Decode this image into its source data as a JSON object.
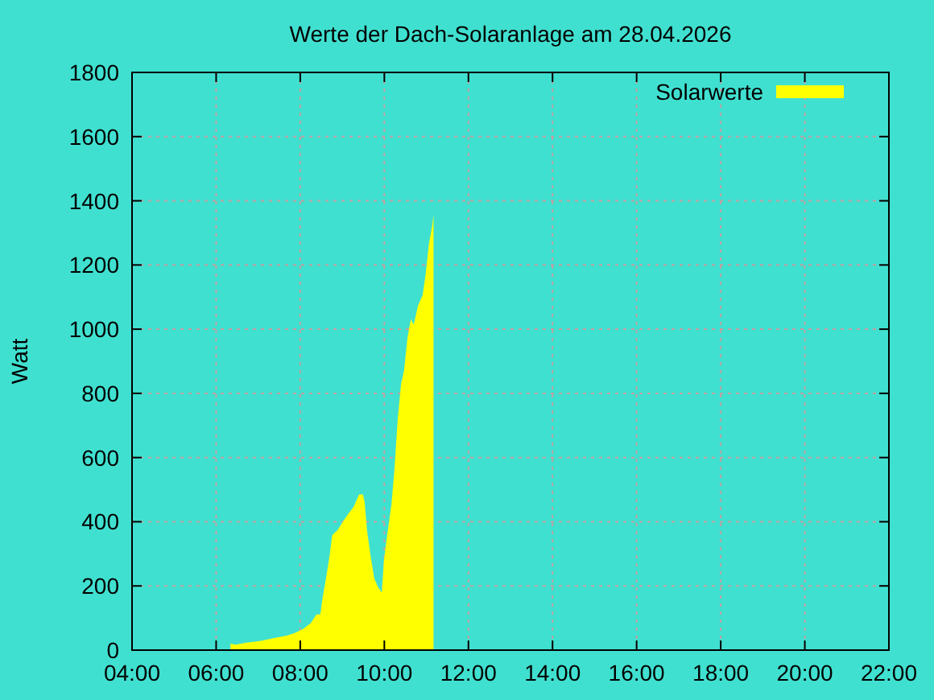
{
  "chart_data": {
    "type": "area",
    "title": "Werte der Dach-Solaranlage am 28.04.2026",
    "ylabel": "Watt",
    "xlim": [
      4,
      22
    ],
    "ylim": [
      0,
      1800
    ],
    "xticks": [
      {
        "value": 4,
        "label": "04:00"
      },
      {
        "value": 6,
        "label": "06:00"
      },
      {
        "value": 8,
        "label": "08:00"
      },
      {
        "value": 10,
        "label": "10:00"
      },
      {
        "value": 12,
        "label": "12:00"
      },
      {
        "value": 14,
        "label": "14:00"
      },
      {
        "value": 16,
        "label": "16:00"
      },
      {
        "value": 18,
        "label": "18:00"
      },
      {
        "value": 20,
        "label": "20:00"
      },
      {
        "value": 22,
        "label": "22:00"
      }
    ],
    "yticks": [
      0,
      200,
      400,
      600,
      800,
      1000,
      1200,
      1400,
      1600,
      1800
    ],
    "grid": true,
    "legend": "top right",
    "x": [
      6.34,
      6.46,
      6.72,
      7.04,
      7.36,
      7.68,
      7.87,
      8.06,
      8.25,
      8.38,
      8.48,
      8.53,
      8.61,
      8.7,
      8.76,
      8.89,
      9.02,
      9.14,
      9.27,
      9.4,
      9.49,
      9.53,
      9.59,
      9.68,
      9.76,
      9.85,
      9.94,
      9.99,
      10.06,
      10.17,
      10.24,
      10.32,
      10.4,
      10.47,
      10.55,
      10.63,
      10.7,
      10.8,
      10.91,
      10.98,
      11.06,
      11.14,
      11.17
    ],
    "series": [
      {
        "name": "Solarwerte",
        "color": "#ffff00",
        "values": [
          20,
          17,
          23,
          28,
          37,
          45,
          53,
          65,
          84,
          110,
          112,
          162,
          221,
          296,
          358,
          374,
          401,
          424,
          446,
          485,
          485,
          463,
          371,
          287,
          224,
          196,
          179,
          279,
          351,
          455,
          563,
          722,
          831,
          872,
          973,
          1031,
          1014,
          1073,
          1106,
          1168,
          1265,
          1323,
          1357
        ]
      }
    ]
  }
}
